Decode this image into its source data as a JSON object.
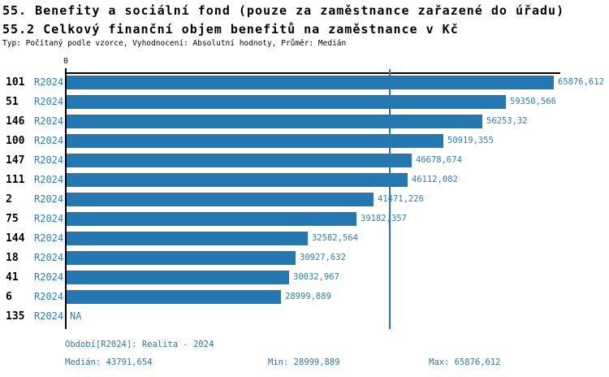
{
  "header": {
    "title": "55. Benefity a sociální fond (pouze za zaměstnance zařazené do úřadu)",
    "subtitle": "55.2 Celkový finanční objem benefitů na zaměstnance v Kč",
    "meta": "Typ: Počítaný podle vzorce, Vyhodnocení: Absolutní hodnoty, Průměr: Medián"
  },
  "chart_data": {
    "type": "bar",
    "orientation": "horizontal",
    "title": "55.2 Celkový finanční objem benefitů na zaměstnance v Kč",
    "axis": {
      "zero_label": "0",
      "xlim": [
        0,
        66800
      ],
      "grid": false
    },
    "categories": [
      "101",
      "51",
      "146",
      "100",
      "147",
      "111",
      "2",
      "75",
      "144",
      "18",
      "41",
      "6",
      "135"
    ],
    "period_label": "R2024",
    "values": [
      65876.612,
      59350.566,
      56253.32,
      50919.355,
      46678.674,
      46112.082,
      41471.226,
      39182.357,
      32582.564,
      30927.632,
      30032.967,
      28999.889,
      null
    ],
    "value_labels": [
      "65876,612",
      "59350,566",
      "56253,32",
      "50919,355",
      "46678,674",
      "46112,082",
      "41471,226",
      "39182,357",
      "32582,564",
      "30927,632",
      "30032,967",
      "28999,889",
      "NA"
    ],
    "median": 43791.654,
    "min": 28999.889,
    "max": 65876.612,
    "colors": {
      "bar": "#2478b2",
      "median_line": "#2478b2",
      "label_text": "#2b7fb5",
      "footer_text": "#1f79a8"
    }
  },
  "footer": {
    "period": "Období[R2024]: Realita - 2024",
    "median": "Medián: 43791,654",
    "min": "Min: 28999,889",
    "max": "Max: 65876,612"
  }
}
